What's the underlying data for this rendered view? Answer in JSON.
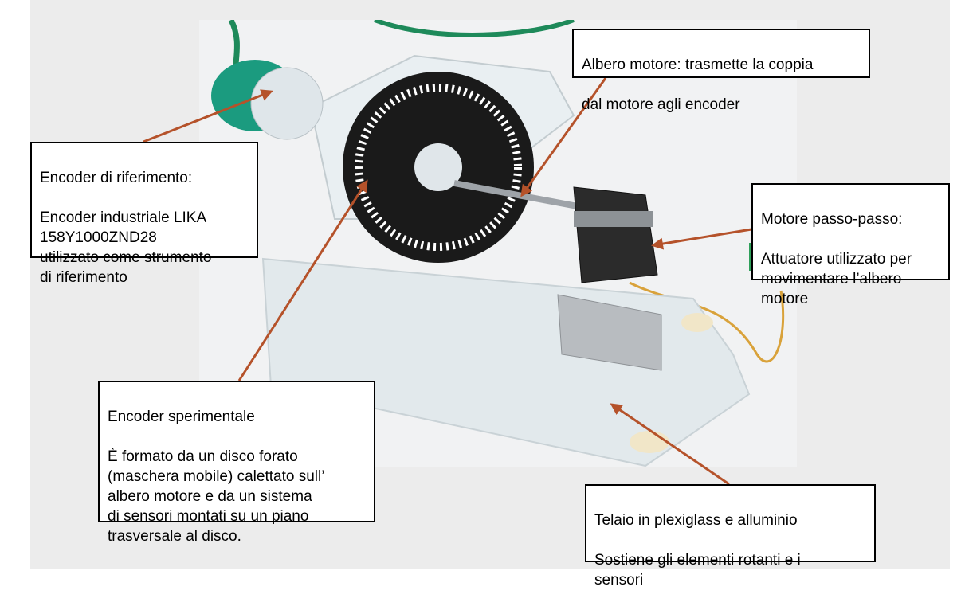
{
  "colors": {
    "arrow": "#b5522a",
    "slide_background": "#ececec",
    "encoder_housing": "#1b9b7f",
    "cable": "#1e8a5a",
    "plexiglass": "#e4ebee",
    "aluminium": "#b8bcc0",
    "motor": "#2b2b2b"
  },
  "callouts": {
    "reference_encoder": {
      "title": "Encoder di riferimento:",
      "body": "Encoder industriale LIKA\n158Y1000ZND28\nutilizzato come strumento\ndi riferimento"
    },
    "motor_shaft": {
      "title": "Albero motore: trasmette la coppia",
      "body": "dal motore agli encoder"
    },
    "stepper_motor": {
      "title": "Motore passo-passo:",
      "body": "Attuatore utilizzato per\nmovimentare l’albero\nmotore"
    },
    "experimental_encoder": {
      "title": "Encoder sperimentale",
      "body": "È formato da un disco forato\n(maschera mobile) calettato sull’\nalbero motore e da un sistema\ndi sensori montati su un piano\ntrasversale al disco."
    },
    "frame": {
      "title": "Telaio in plexiglass e alluminio",
      "body": "Sostiene gli elementi rotanti e i\nsensori"
    }
  }
}
